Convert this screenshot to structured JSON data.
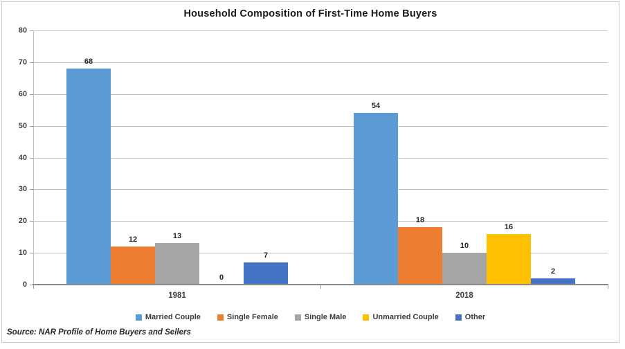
{
  "source_note": "Source: NAR Profile of Home Buyers and Sellers",
  "chart_data": {
    "type": "bar",
    "title": "Household Composition of First-Time Home Buyers",
    "categories": [
      "1981",
      "2018"
    ],
    "series": [
      {
        "name": "Married Couple",
        "color": "#5B9BD5",
        "values": [
          68,
          54
        ]
      },
      {
        "name": "Single Female",
        "color": "#ED7D31",
        "values": [
          12,
          18
        ]
      },
      {
        "name": "Single Male",
        "color": "#A5A5A5",
        "values": [
          13,
          10
        ]
      },
      {
        "name": "Unmarried Couple",
        "color": "#FFC000",
        "values": [
          0,
          16
        ]
      },
      {
        "name": "Other",
        "color": "#4472C4",
        "values": [
          7,
          2
        ]
      }
    ],
    "xlabel": "",
    "ylabel": "",
    "ylim": [
      0,
      80
    ],
    "yticks": [
      0,
      10,
      20,
      30,
      40,
      50,
      60,
      70,
      80
    ],
    "grid": true,
    "data_labels": true,
    "legend_position": "bottom"
  }
}
